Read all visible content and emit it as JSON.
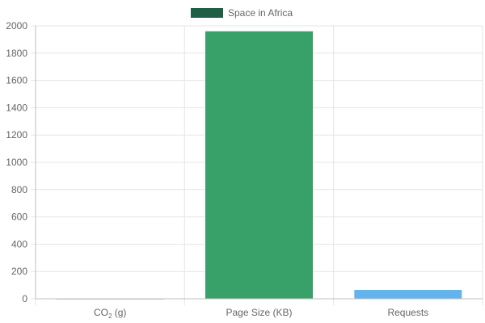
{
  "chart_data": {
    "type": "bar",
    "categories": [
      {
        "base": "CO",
        "sub": "2",
        "suffix": " (g)"
      },
      {
        "base": "Page Size (KB)",
        "sub": "",
        "suffix": ""
      },
      {
        "base": "Requests",
        "sub": "",
        "suffix": ""
      }
    ],
    "series": [
      {
        "name": "Space in Africa",
        "values": [
          2,
          1960,
          65
        ]
      }
    ],
    "ylim": [
      0,
      2000
    ],
    "yticks": [
      0,
      200,
      400,
      600,
      800,
      1000,
      1200,
      1400,
      1600,
      1800,
      2000
    ],
    "grid": true,
    "legend": "top-center"
  },
  "colors": {
    "legend": "#1f5f46",
    "bars": [
      "#2f7d5d",
      "#38a169",
      "#63b3ed"
    ],
    "grid": "#e5e5e5",
    "axis": "#bfbfbf",
    "text": "#666666"
  }
}
